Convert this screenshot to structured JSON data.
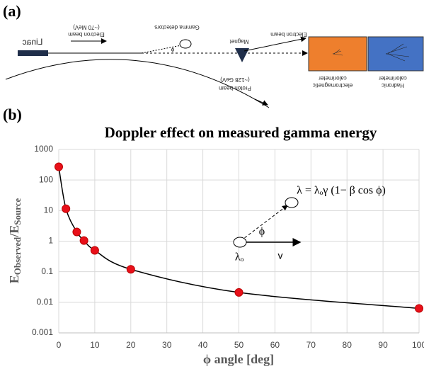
{
  "panel_a": {
    "label": "(a)",
    "linac": "Linac",
    "electron_beam_in": "Electron beam",
    "electron_energy": "(~70 MeV)",
    "gamma_detectors": "Gamma detectors",
    "angle": "ϕ",
    "magnet": "Magnet",
    "electron_beam_out": "Electron beam",
    "proton_energy": "(~128 GeV)",
    "proton_beam": "Proton beam",
    "em_calorimeter": [
      "electromagnetic",
      "calorimeter"
    ],
    "hadronic_calorimeter": [
      "Hadronic",
      "calorimeter"
    ]
  },
  "panel_b_label": "(b)",
  "chart_data": {
    "type": "line",
    "title": "Doppler effect on measured gamma energy",
    "x_label": "ϕ angle [deg]",
    "y_label": [
      "E",
      "Observed",
      "/E",
      "Source"
    ],
    "x": [
      0,
      2,
      5,
      7,
      10,
      20,
      50,
      100
    ],
    "series": [
      {
        "color": "#e8101a",
        "line_color": "#000000",
        "values": [
          270,
          11.5,
          2,
          1.05,
          0.5,
          0.12,
          0.021,
          0.0063
        ]
      }
    ],
    "xlim": [
      0,
      100
    ],
    "xticks": [
      0,
      10,
      20,
      30,
      40,
      50,
      60,
      70,
      80,
      90,
      100
    ],
    "ylim": [
      0.001,
      1000
    ],
    "yticks": [
      0.001,
      0.01,
      0.1,
      1,
      10,
      100,
      1000
    ],
    "log_y": true,
    "grid": true,
    "annotations": [
      "λ = λₒγ (1− β cos ϕ)",
      "ϕ",
      "λₒ",
      "v"
    ]
  }
}
